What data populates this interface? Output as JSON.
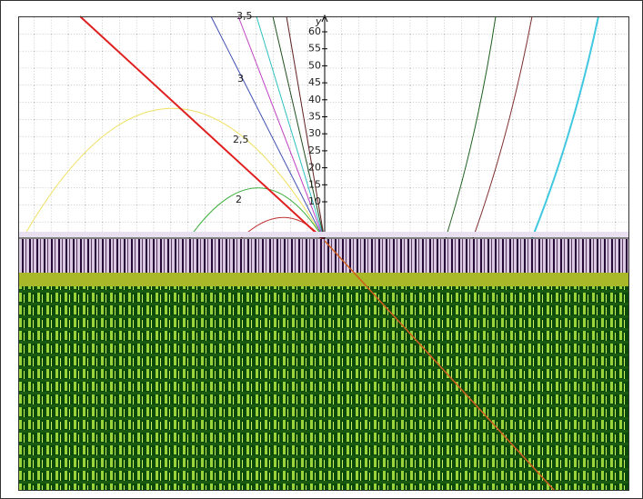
{
  "y_axis": {
    "label": "y",
    "ticks": [
      "10",
      "15",
      "20",
      "25",
      "30",
      "35",
      "40",
      "45",
      "50",
      "55",
      "60"
    ]
  },
  "curve_labels": [
    "2",
    "2,5",
    "3",
    "3,5"
  ]
}
